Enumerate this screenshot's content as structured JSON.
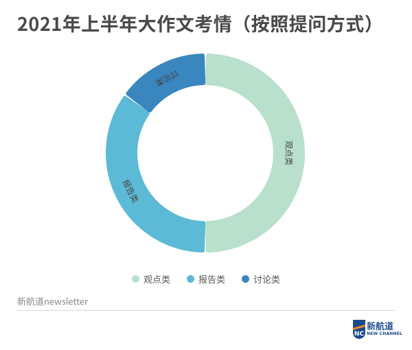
{
  "title": "2021年上半年大作文考情（按照提问方式）",
  "source": "新航道newsletter",
  "logo": {
    "mark": "NC",
    "name_cn": "新航道",
    "name_en": "NEW CHANNEL",
    "colors": {
      "navy": "#1b4a8a",
      "orange": "#f08a24"
    }
  },
  "chart_data": {
    "type": "pie",
    "variant": "donut",
    "title": "",
    "categories": [
      "观点类",
      "报告类",
      "讨论类"
    ],
    "values": [
      50,
      35,
      15
    ],
    "colors": [
      "#b8e0cc",
      "#5cbad6",
      "#3a86bf"
    ],
    "legend": "bottom-center",
    "labels_on_segments": true
  }
}
